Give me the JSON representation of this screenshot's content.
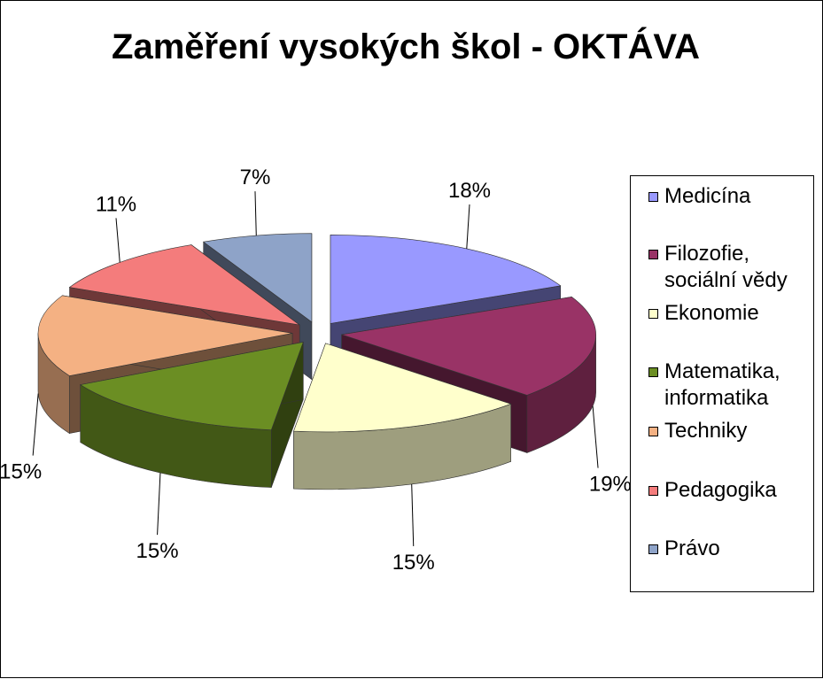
{
  "chart_data": {
    "type": "pie",
    "title": "Zaměření vysokých škol - OKTÁVA",
    "categories": [
      "Medicína",
      "Filozofie, sociální vědy",
      "Ekonomie",
      "Matematika, informatika",
      "Techniky",
      "Pedagogika",
      "Právo"
    ],
    "values": [
      18,
      19,
      15,
      15,
      15,
      11,
      7
    ],
    "data_labels": [
      "18%",
      "19%",
      "15%",
      "15%",
      "15%",
      "11%",
      "7%"
    ],
    "colors": [
      "#9999FF",
      "#993366",
      "#FFFFCC",
      "#6B8E23",
      "#F4B183",
      "#F47C7C",
      "#8EA3C8"
    ],
    "exploded": true,
    "three_d": true,
    "legend_position": "right"
  },
  "legend": {
    "items": [
      {
        "lines": [
          "Medicína"
        ]
      },
      {
        "lines": [
          "Filozofie,",
          "sociální vědy"
        ]
      },
      {
        "lines": [
          "Ekonomie"
        ]
      },
      {
        "lines": [
          "Matematika,",
          "informatika"
        ]
      },
      {
        "lines": [
          "Techniky"
        ]
      },
      {
        "lines": [
          "Pedagogika"
        ]
      },
      {
        "lines": [
          "Právo"
        ]
      }
    ]
  }
}
